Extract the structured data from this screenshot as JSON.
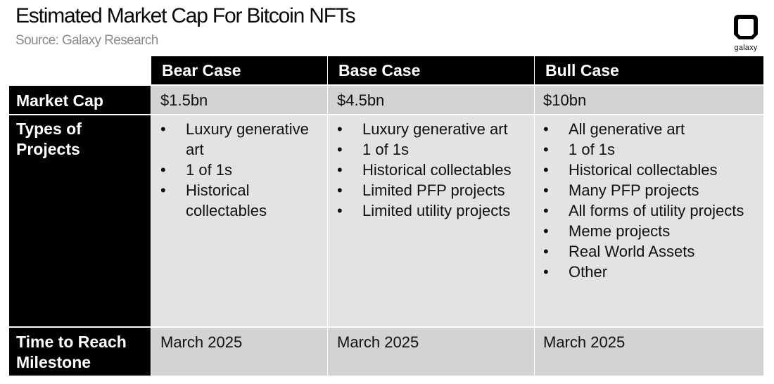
{
  "header": {
    "title": "Estimated Market Cap For Bitcoin NFTs",
    "subtitle": "Source: Galaxy Research",
    "logo_text": "galaxy"
  },
  "chart_data": {
    "type": "table",
    "title": "Estimated Market Cap For Bitcoin NFTs",
    "source": "Source: Galaxy Research",
    "columns": [
      "Bear Case",
      "Base Case",
      "Bull Case"
    ],
    "rows": {
      "market_cap": {
        "label": "Market Cap",
        "values": [
          "$1.5bn",
          "$4.5bn",
          "$10bn"
        ]
      },
      "types": {
        "label_line1": "Types of",
        "label_line2": "Projects",
        "bear": [
          "Luxury generative art",
          "1 of 1s",
          "Historical collectables"
        ],
        "base": [
          "Luxury generative art",
          "1 of 1s",
          "Historical collectables",
          "Limited PFP projects",
          "Limited utility projects"
        ],
        "bull": [
          "All generative art",
          "1 of 1s",
          "Historical collectables",
          "Many PFP projects",
          "All forms of utility projects",
          "Meme projects",
          "Real World Assets",
          "Other"
        ]
      },
      "time": {
        "label_line1": "Time to Reach",
        "label_line2": "Milestone",
        "values": [
          "March 2025",
          "March 2025",
          "March 2025"
        ]
      }
    }
  },
  "colors": {
    "header_bg": "#000000",
    "header_text": "#ffffff",
    "cell_bg": "#e3e3e3",
    "row_bg_dark": "#d3d3d3",
    "subtitle": "#8a8a8a"
  }
}
